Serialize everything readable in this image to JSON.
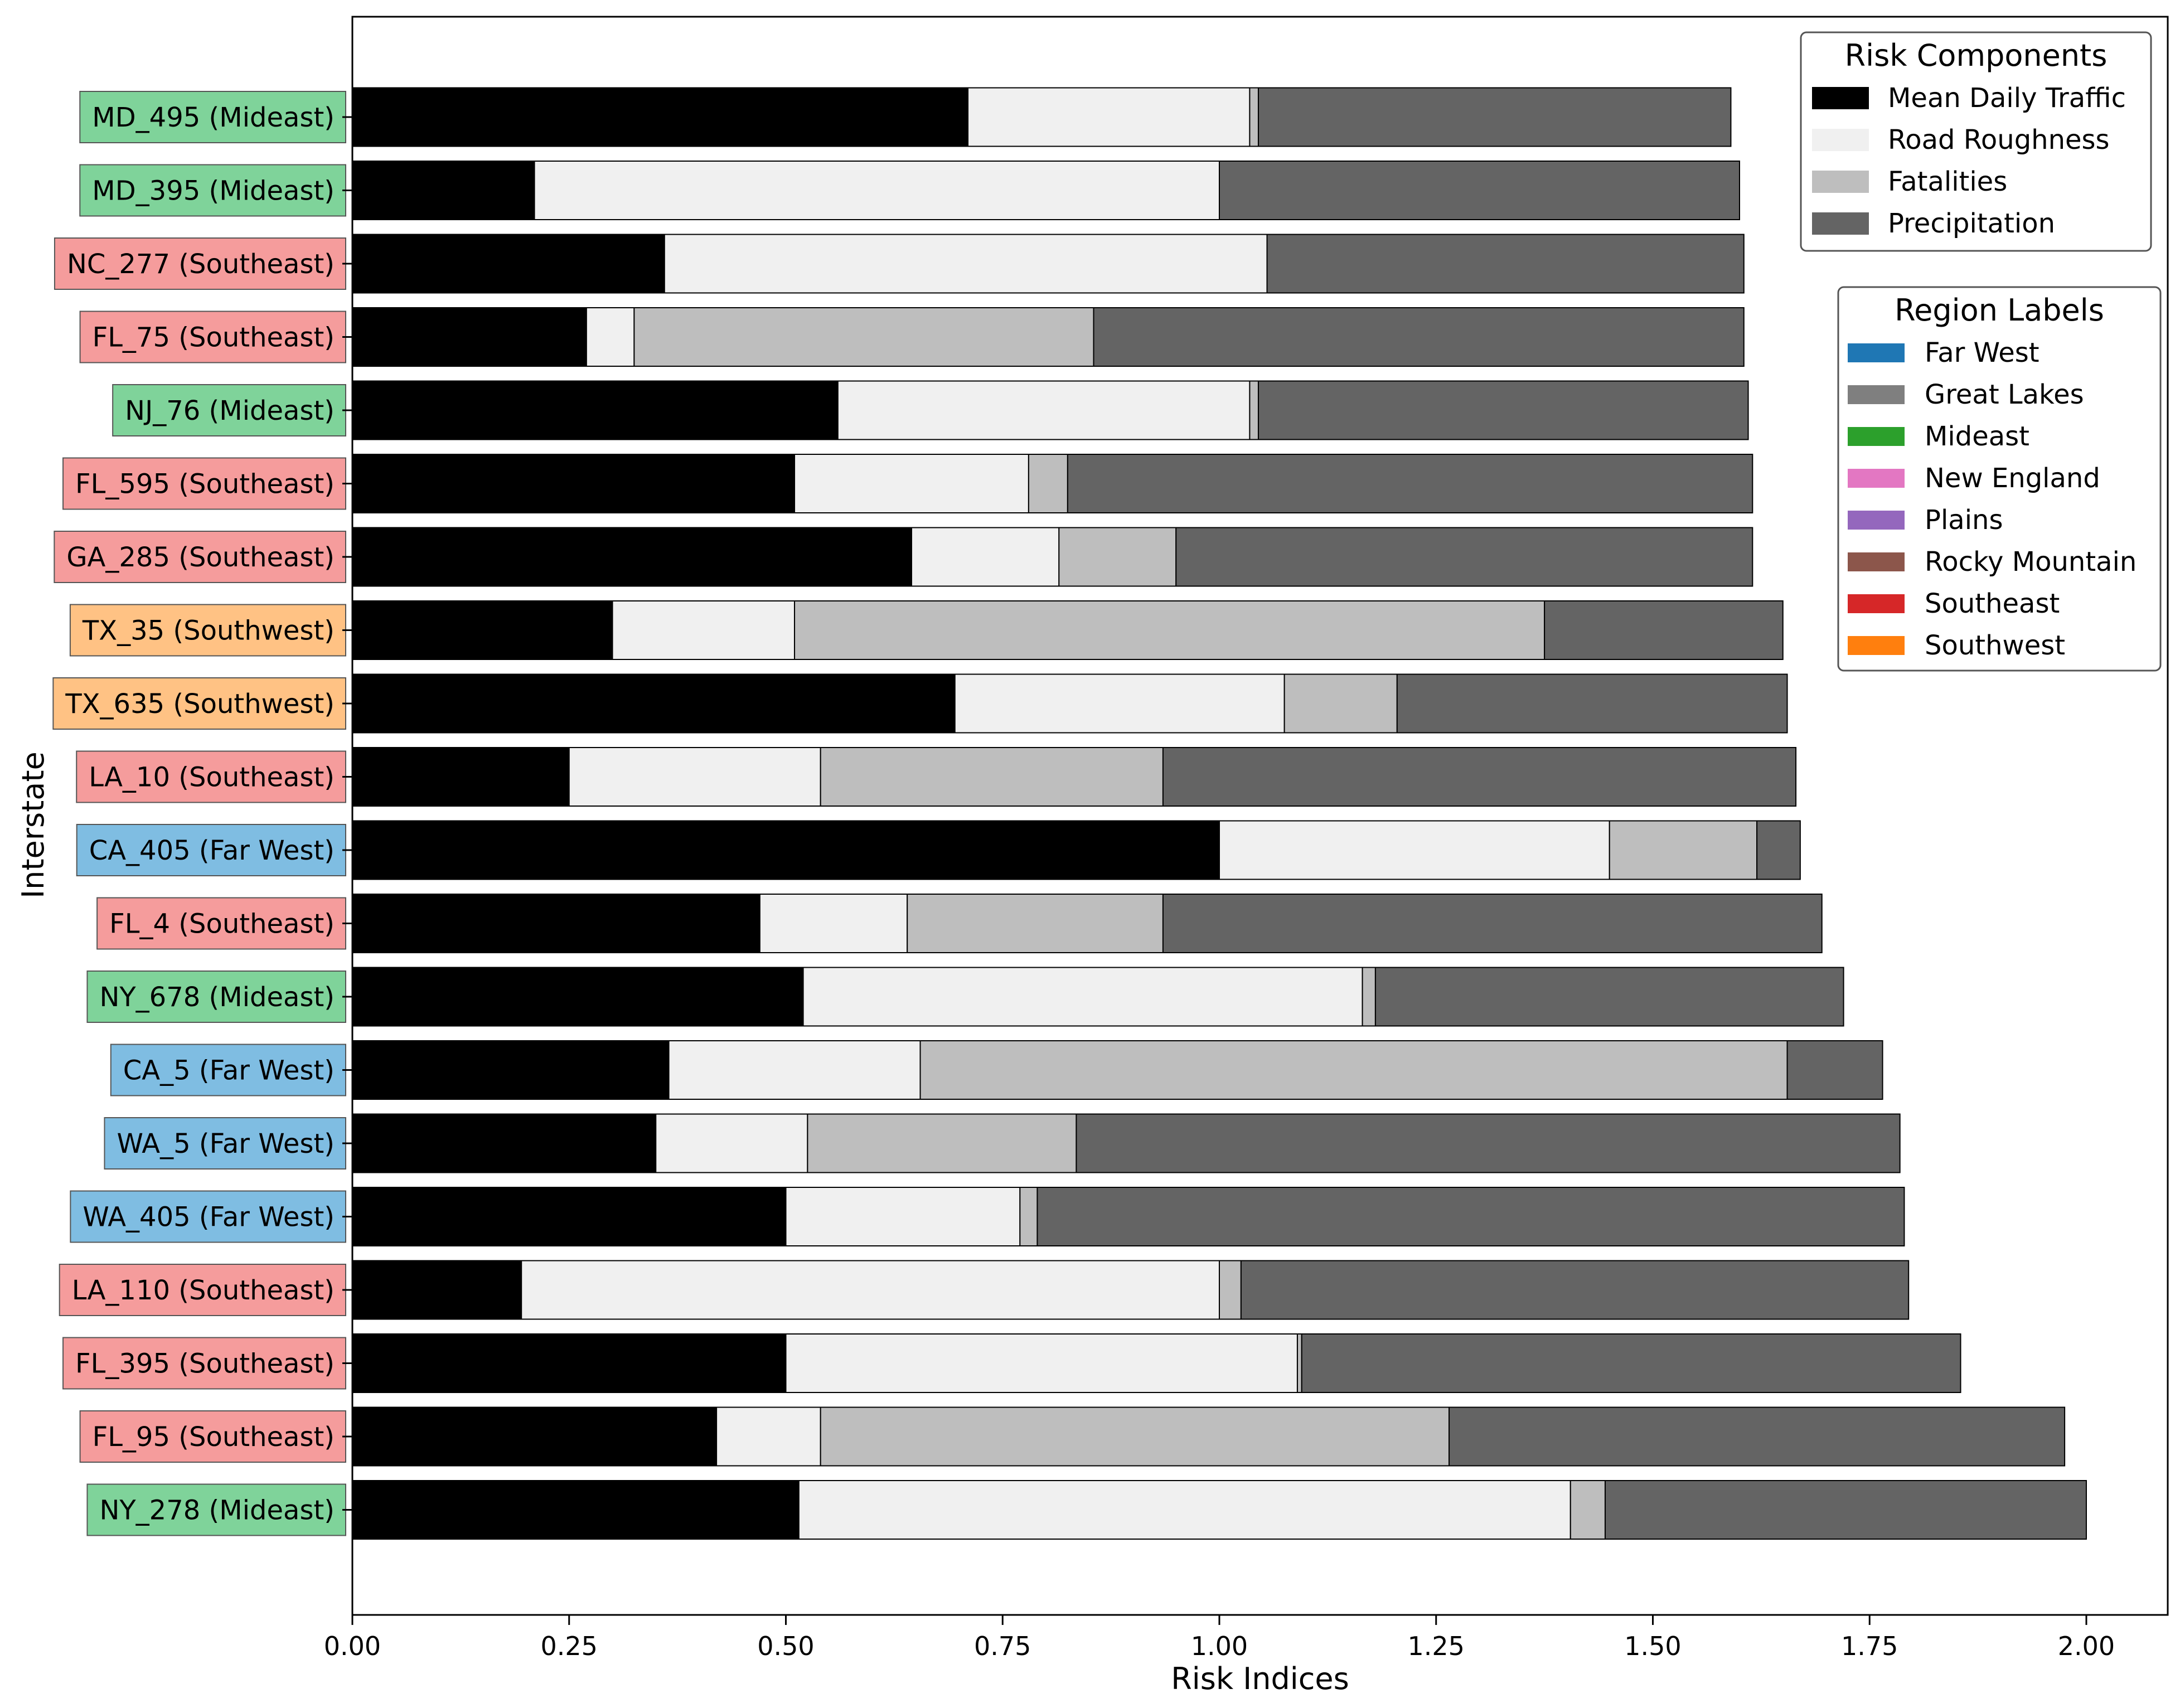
{
  "chart_data": {
    "type": "bar",
    "orientation": "horizontal",
    "stacked": true,
    "xlabel": "Risk Indices",
    "ylabel": "Interstate",
    "xlim": [
      0,
      2.1
    ],
    "xticks": [
      "0.00",
      "0.25",
      "0.50",
      "0.75",
      "1.00",
      "1.25",
      "1.50",
      "1.75",
      "2.00"
    ],
    "grid": false,
    "categories": [
      {
        "label": "MD_495 (Mideast)",
        "region": "Mideast"
      },
      {
        "label": "MD_395 (Mideast)",
        "region": "Mideast"
      },
      {
        "label": "NC_277 (Southeast)",
        "region": "Southeast"
      },
      {
        "label": "FL_75 (Southeast)",
        "region": "Southeast"
      },
      {
        "label": "NJ_76 (Mideast)",
        "region": "Mideast"
      },
      {
        "label": "FL_595 (Southeast)",
        "region": "Southeast"
      },
      {
        "label": "GA_285 (Southeast)",
        "region": "Southeast"
      },
      {
        "label": "TX_35 (Southwest)",
        "region": "Southwest"
      },
      {
        "label": "TX_635 (Southwest)",
        "region": "Southwest"
      },
      {
        "label": "LA_10 (Southeast)",
        "region": "Southeast"
      },
      {
        "label": "CA_405 (Far West)",
        "region": "Far West"
      },
      {
        "label": "FL_4 (Southeast)",
        "region": "Southeast"
      },
      {
        "label": "NY_678 (Mideast)",
        "region": "Mideast"
      },
      {
        "label": "CA_5 (Far West)",
        "region": "Far West"
      },
      {
        "label": "WA_5 (Far West)",
        "region": "Far West"
      },
      {
        "label": "WA_405 (Far West)",
        "region": "Far West"
      },
      {
        "label": "LA_110 (Southeast)",
        "region": "Southeast"
      },
      {
        "label": "FL_395 (Southeast)",
        "region": "Southeast"
      },
      {
        "label": "FL_95 (Southeast)",
        "region": "Southeast"
      },
      {
        "label": "NY_278 (Mideast)",
        "region": "Mideast"
      }
    ],
    "series": [
      {
        "name": "Mean Daily Traffic",
        "color": "#000000",
        "values": [
          0.71,
          0.21,
          0.36,
          0.27,
          0.56,
          0.51,
          0.645,
          0.3,
          0.695,
          0.25,
          1.0,
          0.47,
          0.52,
          0.365,
          0.35,
          0.5,
          0.195,
          0.5,
          0.42,
          0.515
        ]
      },
      {
        "name": "Road Roughness",
        "color": "#f0f0f0",
        "values": [
          0.325,
          0.79,
          0.695,
          0.055,
          0.475,
          0.27,
          0.17,
          0.21,
          0.38,
          0.29,
          0.45,
          0.17,
          0.645,
          0.29,
          0.175,
          0.27,
          0.805,
          0.59,
          0.12,
          0.89
        ]
      },
      {
        "name": "Fatalities",
        "color": "#bebebe",
        "values": [
          0.01,
          0.0,
          0.0,
          0.53,
          0.01,
          0.045,
          0.135,
          0.865,
          0.13,
          0.395,
          0.17,
          0.295,
          0.015,
          1.0,
          0.31,
          0.02,
          0.025,
          0.005,
          0.725,
          0.04
        ]
      },
      {
        "name": "Precipitation",
        "color": "#646464",
        "values": [
          0.545,
          0.6,
          0.55,
          0.75,
          0.565,
          0.79,
          0.665,
          0.275,
          0.45,
          0.73,
          0.05,
          0.76,
          0.54,
          0.11,
          0.95,
          1.0,
          0.77,
          0.76,
          0.71,
          0.555
        ]
      }
    ],
    "legends": [
      {
        "title": "Risk Components",
        "position": "top-right",
        "entries": [
          "Mean Daily Traffic",
          "Road Roughness",
          "Fatalities",
          "Precipitation"
        ]
      },
      {
        "title": "Region Labels",
        "position": "right",
        "entries": [
          {
            "name": "Far West",
            "color": "#1f77b4"
          },
          {
            "name": "Great Lakes",
            "color": "#7f7f7f"
          },
          {
            "name": "Mideast",
            "color": "#2ca02c"
          },
          {
            "name": "New England",
            "color": "#e377c2"
          },
          {
            "name": "Plains",
            "color": "#9467bd"
          },
          {
            "name": "Rocky Mountain",
            "color": "#8c564b"
          },
          {
            "name": "Southeast",
            "color": "#d62728"
          },
          {
            "name": "Southwest",
            "color": "#ff7f0e"
          }
        ]
      }
    ],
    "region_label_bg": {
      "Far West": "#7fbde2",
      "Mideast": "#7fd39a",
      "Southeast": "#f59c9c",
      "Southwest": "#ffc284"
    }
  }
}
